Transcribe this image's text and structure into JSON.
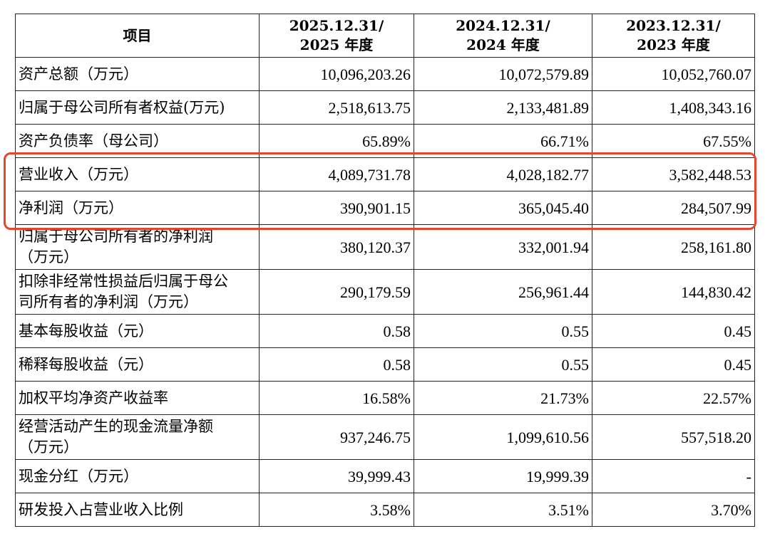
{
  "table": {
    "headers": {
      "item": "项目",
      "y2025": [
        "2025.12.31/",
        "2025 年度"
      ],
      "y2024": [
        "2024.12.31/",
        "2024 年度"
      ],
      "y2023": [
        "2023.12.31/",
        "2023 年度"
      ]
    },
    "rows": [
      {
        "label": "资产总额（万元）",
        "v2025": "10,096,203.26",
        "v2024": "10,072,579.89",
        "v2023": "10,052,760.07",
        "tall": false
      },
      {
        "label": "归属于母公司所有者权益(万元)",
        "v2025": "2,518,613.75",
        "v2024": "2,133,481.89",
        "v2023": "1,408,343.16",
        "tall": false
      },
      {
        "label": "资产负债率（母公司）",
        "v2025": "65.89%",
        "v2024": "66.71%",
        "v2023": "67.55%",
        "tall": false
      },
      {
        "label": "营业收入（万元）",
        "v2025": "4,089,731.78",
        "v2024": "4,028,182.77",
        "v2023": "3,582,448.53",
        "tall": false
      },
      {
        "label": "净利润（万元）",
        "v2025": "390,901.15",
        "v2024": "365,045.40",
        "v2023": "284,507.99",
        "tall": false
      },
      {
        "label": "归属于母公司所有者的净利润\n（万元）",
        "v2025": "380,120.37",
        "v2024": "332,001.94",
        "v2023": "258,161.80",
        "tall": true
      },
      {
        "label": "扣除非经常性损益后归属于母公\n司所有者的净利润（万元）",
        "v2025": "290,179.59",
        "v2024": "256,961.44",
        "v2023": "144,830.42",
        "tall": true
      },
      {
        "label": "基本每股收益（元）",
        "v2025": "0.58",
        "v2024": "0.55",
        "v2023": "0.45",
        "tall": false
      },
      {
        "label": "稀释每股收益（元）",
        "v2025": "0.58",
        "v2024": "0.55",
        "v2023": "0.45",
        "tall": false
      },
      {
        "label": "加权平均净资产收益率",
        "v2025": "16.58%",
        "v2024": "21.73%",
        "v2023": "22.57%",
        "tall": false
      },
      {
        "label": "经营活动产生的现金流量净额\n（万元）",
        "v2025": "937,246.75",
        "v2024": "1,099,610.56",
        "v2023": "557,518.20",
        "tall": true
      },
      {
        "label": "现金分红（万元）",
        "v2025": "39,999.43",
        "v2024": "19,999.39",
        "v2023": "-",
        "tall": false
      },
      {
        "label": "研发投入占营业收入比例",
        "v2025": "3.58%",
        "v2024": "3.51%",
        "v2023": "3.70%",
        "tall": false
      }
    ]
  },
  "highlight": {
    "rows": [
      "营业收入（万元）",
      "净利润（万元）"
    ],
    "color": "#e8452f"
  }
}
